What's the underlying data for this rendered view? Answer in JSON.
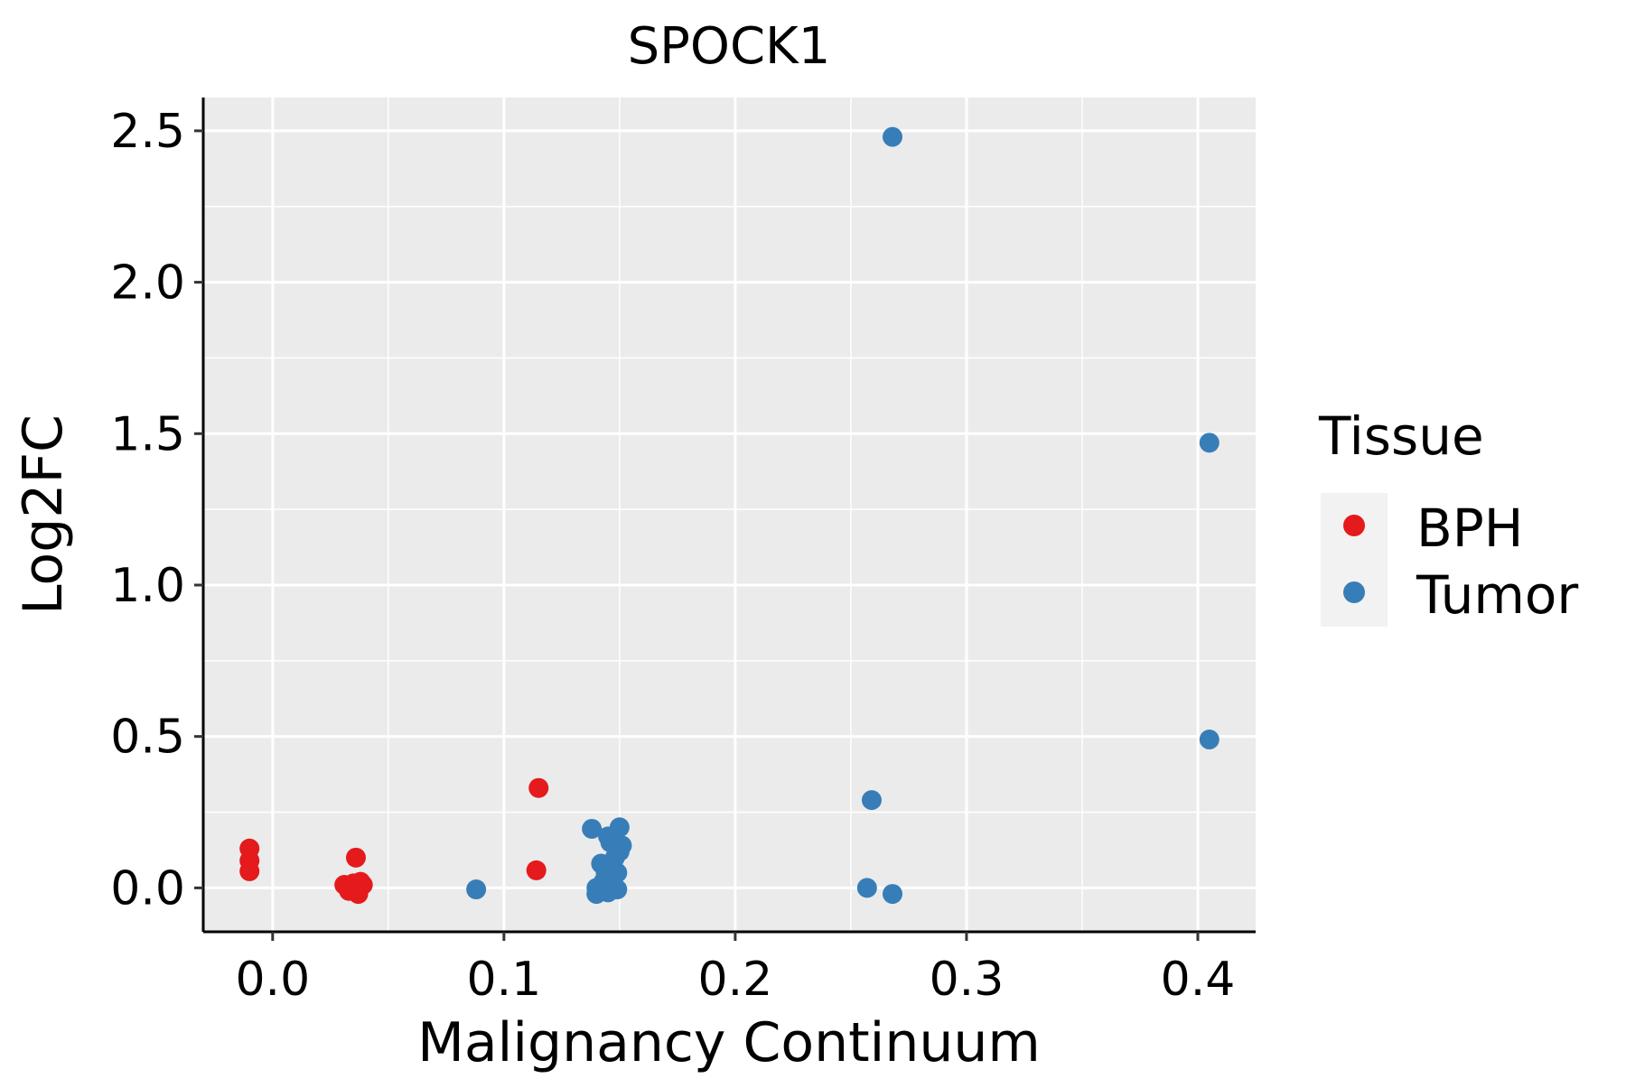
{
  "chart_data": {
    "type": "scatter",
    "title": "SPOCK1",
    "xlabel": "Malignancy Continuum",
    "ylabel": "Log2FC",
    "xlim": [
      -0.03,
      0.425
    ],
    "ylim": [
      -0.145,
      2.61
    ],
    "xticks": [
      0.0,
      0.1,
      0.2,
      0.3,
      0.4
    ],
    "xtick_labels": [
      "0.0",
      "0.1",
      "0.2",
      "0.3",
      "0.4"
    ],
    "yticks": [
      0.0,
      0.5,
      1.0,
      1.5,
      2.0,
      2.5
    ],
    "ytick_labels": [
      "0.0",
      "0.5",
      "1.0",
      "1.5",
      "2.0",
      "2.5"
    ],
    "grid": true,
    "background": "#ebebeb",
    "legend": {
      "title": "Tissue",
      "position": "right",
      "entries": [
        "BPH",
        "Tumor"
      ]
    },
    "series": [
      {
        "name": "BPH",
        "color": "#e41a1c",
        "points": [
          {
            "x": -0.01,
            "y": 0.13
          },
          {
            "x": -0.01,
            "y": 0.09
          },
          {
            "x": -0.01,
            "y": 0.055
          },
          {
            "x": 0.031,
            "y": 0.01
          },
          {
            "x": 0.033,
            "y": -0.01
          },
          {
            "x": 0.034,
            "y": 0.005
          },
          {
            "x": 0.035,
            "y": 0.015
          },
          {
            "x": 0.036,
            "y": 0.1
          },
          {
            "x": 0.037,
            "y": 0.0
          },
          {
            "x": 0.037,
            "y": -0.02
          },
          {
            "x": 0.038,
            "y": 0.02
          },
          {
            "x": 0.039,
            "y": 0.01
          },
          {
            "x": 0.114,
            "y": 0.058
          },
          {
            "x": 0.115,
            "y": 0.33
          }
        ]
      },
      {
        "name": "Tumor",
        "color": "#377eb8",
        "points": [
          {
            "x": 0.088,
            "y": -0.005
          },
          {
            "x": 0.138,
            "y": 0.195
          },
          {
            "x": 0.14,
            "y": 0.0
          },
          {
            "x": 0.14,
            "y": -0.02
          },
          {
            "x": 0.142,
            "y": 0.08
          },
          {
            "x": 0.143,
            "y": 0.02
          },
          {
            "x": 0.144,
            "y": 0.05
          },
          {
            "x": 0.145,
            "y": 0.17
          },
          {
            "x": 0.145,
            "y": -0.015
          },
          {
            "x": 0.146,
            "y": 0.15
          },
          {
            "x": 0.147,
            "y": 0.03
          },
          {
            "x": 0.148,
            "y": 0.1
          },
          {
            "x": 0.149,
            "y": 0.05
          },
          {
            "x": 0.149,
            "y": -0.005
          },
          {
            "x": 0.15,
            "y": 0.2
          },
          {
            "x": 0.15,
            "y": 0.12
          },
          {
            "x": 0.151,
            "y": 0.14
          },
          {
            "x": 0.257,
            "y": 0.0
          },
          {
            "x": 0.259,
            "y": 0.29
          },
          {
            "x": 0.268,
            "y": -0.02
          },
          {
            "x": 0.268,
            "y": 2.48
          },
          {
            "x": 0.405,
            "y": 1.47
          },
          {
            "x": 0.405,
            "y": 0.49
          }
        ]
      }
    ]
  }
}
